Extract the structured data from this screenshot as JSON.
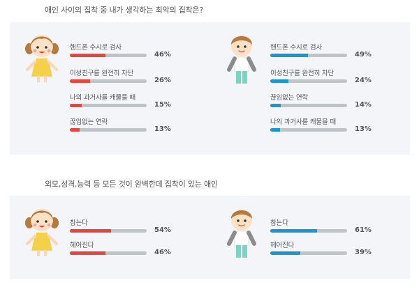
{
  "colors": {
    "female": "#e8453c",
    "male": "#1b97cf",
    "track": "#bfc4c9",
    "panel": "#f3f5f8"
  },
  "chart_data": [
    {
      "type": "bar",
      "title": "애인 사이의 집착 중 내가 생각하는 최악의 집착은?",
      "groups": [
        {
          "icon": "girl-icon",
          "categories": [
            "핸드폰 수시로 검사",
            "이성친구를 완전히 차단",
            "나의 과거사를 캐물을 때",
            "끊임없는 연락"
          ],
          "values": [
            46,
            26,
            15,
            13
          ],
          "labels": [
            "46%",
            "26%",
            "15%",
            "13%"
          ]
        },
        {
          "icon": "boy-icon",
          "categories": [
            "핸드폰 수시로 검사",
            "이성친구를 완전히 차단",
            "끊임없는 연락",
            "나의 과거사를 캐물을 때"
          ],
          "values": [
            49,
            24,
            14,
            13
          ],
          "labels": [
            "49%",
            "24%",
            "14%",
            "13%"
          ]
        }
      ]
    },
    {
      "type": "bar",
      "title": "외모,성격,능력 등 모든 것이 완벽한데 집착이 있는 애인",
      "groups": [
        {
          "icon": "girl-icon",
          "categories": [
            "참는다",
            "헤어진다"
          ],
          "values": [
            54,
            46
          ],
          "labels": [
            "54%",
            "46%"
          ]
        },
        {
          "icon": "boy-icon",
          "categories": [
            "참는다",
            "헤어진다"
          ],
          "values": [
            61,
            39
          ],
          "labels": [
            "61%",
            "39%"
          ]
        }
      ]
    }
  ]
}
